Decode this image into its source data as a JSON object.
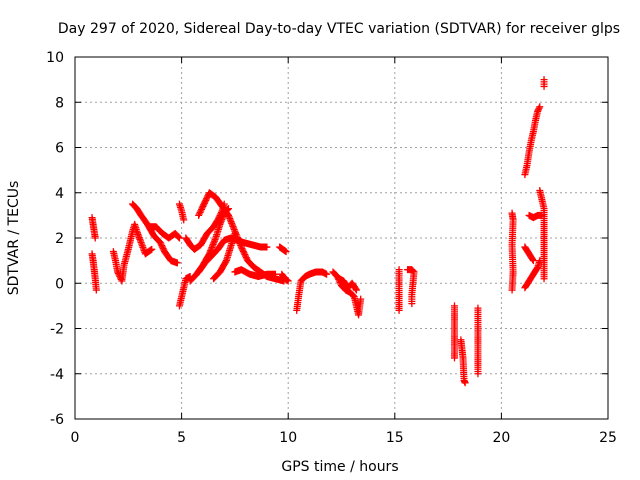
{
  "colors": {
    "series": "#ff0000",
    "grid": "#a0a0a0",
    "axis": "#000000",
    "background": "#ffffff"
  },
  "chart_data": {
    "type": "scatter",
    "title": "Day 297 of 2020, Sidereal Day-to-day VTEC variation (SDTVAR) for receiver glps",
    "xlabel": "GPS time / hours",
    "ylabel": "SDTVAR / TECUs",
    "xlim": [
      0,
      25
    ],
    "ylim": [
      -6,
      10
    ],
    "grid": true,
    "marker": "plus",
    "xticks": [
      0,
      5,
      10,
      15,
      20,
      25
    ],
    "yticks": [
      -6,
      -4,
      -2,
      0,
      2,
      4,
      6,
      8,
      10
    ],
    "series": [
      {
        "name": "SDTVAR",
        "tracks": [
          [
            [
              0.8,
              2.9
            ],
            [
              0.85,
              2.6
            ],
            [
              0.9,
              2.3
            ],
            [
              0.95,
              2.0
            ]
          ],
          [
            [
              0.8,
              1.3
            ],
            [
              0.85,
              1.0
            ],
            [
              0.9,
              0.6
            ],
            [
              0.95,
              0.2
            ],
            [
              1.0,
              -0.3
            ]
          ],
          [
            [
              1.8,
              1.4
            ],
            [
              1.9,
              1.0
            ],
            [
              2.0,
              0.5
            ],
            [
              2.1,
              0.3
            ],
            [
              2.2,
              0.1
            ],
            [
              2.3,
              0.8
            ],
            [
              2.5,
              1.5
            ],
            [
              2.7,
              2.3
            ],
            [
              2.8,
              2.6
            ],
            [
              2.9,
              2.3
            ],
            [
              3.1,
              1.8
            ],
            [
              3.3,
              1.3
            ],
            [
              3.6,
              1.5
            ]
          ],
          [
            [
              2.7,
              3.5
            ],
            [
              2.9,
              3.3
            ],
            [
              3.1,
              3.0
            ],
            [
              3.4,
              2.6
            ],
            [
              3.7,
              2.1
            ],
            [
              4.0,
              1.8
            ],
            [
              4.2,
              1.4
            ],
            [
              4.5,
              1.0
            ],
            [
              4.8,
              0.9
            ]
          ],
          [
            [
              3.5,
              2.5
            ],
            [
              3.8,
              2.5
            ],
            [
              4.1,
              2.2
            ],
            [
              4.4,
              2.0
            ],
            [
              4.7,
              2.2
            ],
            [
              4.9,
              2.0
            ]
          ],
          [
            [
              4.9,
              3.5
            ],
            [
              5.0,
              3.2
            ],
            [
              5.1,
              2.8
            ]
          ],
          [
            [
              4.9,
              -1.0
            ],
            [
              5.0,
              -0.6
            ],
            [
              5.1,
              -0.2
            ],
            [
              5.2,
              0.2
            ],
            [
              5.4,
              0.3
            ]
          ],
          [
            [
              5.2,
              2.0
            ],
            [
              5.4,
              1.7
            ],
            [
              5.6,
              1.5
            ],
            [
              5.9,
              1.7
            ],
            [
              6.2,
              2.2
            ],
            [
              6.5,
              2.5
            ],
            [
              6.7,
              2.8
            ],
            [
              6.9,
              3.2
            ],
            [
              7.0,
              3.5
            ]
          ],
          [
            [
              5.4,
              0.1
            ],
            [
              5.7,
              0.4
            ],
            [
              6.0,
              0.8
            ],
            [
              6.3,
              1.3
            ],
            [
              6.6,
              2.0
            ],
            [
              6.8,
              2.6
            ],
            [
              7.0,
              3.1
            ],
            [
              7.2,
              3.3
            ]
          ],
          [
            [
              5.8,
              3.0
            ],
            [
              6.1,
              3.6
            ],
            [
              6.3,
              4.0
            ],
            [
              6.6,
              3.8
            ],
            [
              6.9,
              3.4
            ],
            [
              7.2,
              3.0
            ],
            [
              7.5,
              2.3
            ],
            [
              7.8,
              1.6
            ],
            [
              8.1,
              1.0
            ],
            [
              8.4,
              0.7
            ],
            [
              8.7,
              0.5
            ],
            [
              9.0,
              0.3
            ],
            [
              9.4,
              0.2
            ],
            [
              9.8,
              0.1
            ]
          ],
          [
            [
              5.8,
              0.5
            ],
            [
              6.1,
              0.9
            ],
            [
              6.4,
              1.2
            ],
            [
              6.7,
              1.5
            ],
            [
              7.0,
              1.9
            ],
            [
              7.3,
              2.0
            ],
            [
              7.6,
              1.9
            ],
            [
              7.9,
              1.8
            ],
            [
              8.3,
              1.7
            ],
            [
              8.7,
              1.6
            ],
            [
              9.0,
              1.6
            ]
          ],
          [
            [
              6.5,
              0.2
            ],
            [
              6.8,
              0.5
            ],
            [
              7.1,
              1.0
            ],
            [
              7.3,
              1.6
            ],
            [
              7.5,
              2.2
            ]
          ],
          [
            [
              7.5,
              0.5
            ],
            [
              7.8,
              0.6
            ],
            [
              8.2,
              0.4
            ],
            [
              8.6,
              0.3
            ],
            [
              9.0,
              0.4
            ],
            [
              9.4,
              0.4
            ]
          ],
          [
            [
              9.6,
              1.6
            ],
            [
              9.75,
              1.5
            ],
            [
              9.9,
              1.4
            ]
          ],
          [
            [
              9.7,
              0.4
            ],
            [
              9.85,
              0.2
            ],
            [
              10.0,
              0.1
            ]
          ],
          [
            [
              10.4,
              -1.2
            ],
            [
              10.5,
              -0.5
            ],
            [
              10.6,
              0.1
            ],
            [
              10.8,
              0.3
            ],
            [
              11.0,
              0.4
            ],
            [
              11.3,
              0.5
            ],
            [
              11.6,
              0.5
            ],
            [
              11.8,
              0.4
            ]
          ],
          [
            [
              12.1,
              0.5
            ],
            [
              12.3,
              0.3
            ],
            [
              12.5,
              -0.1
            ],
            [
              12.7,
              -0.3
            ],
            [
              12.9,
              -0.4
            ],
            [
              13.1,
              -0.6
            ],
            [
              13.3,
              -1.4
            ],
            [
              13.4,
              -0.7
            ]
          ],
          [
            [
              12.4,
              0.2
            ],
            [
              12.6,
              0.1
            ],
            [
              12.8,
              -0.2
            ],
            [
              13.0,
              0.0
            ],
            [
              13.2,
              -0.3
            ]
          ],
          [
            [
              15.2,
              0.6
            ],
            [
              15.2,
              -0.5
            ],
            [
              15.2,
              -1.2
            ]
          ],
          [
            [
              15.6,
              0.6
            ],
            [
              15.8,
              0.6
            ],
            [
              15.9,
              0.5
            ],
            [
              15.8,
              -0.5
            ],
            [
              15.8,
              -0.9
            ]
          ],
          [
            [
              17.8,
              -1.0
            ],
            [
              17.8,
              -2.6
            ],
            [
              17.8,
              -3.3
            ]
          ],
          [
            [
              18.1,
              -2.5
            ],
            [
              18.15,
              -2.9
            ],
            [
              18.2,
              -3.3
            ],
            [
              18.25,
              -4.3
            ],
            [
              18.3,
              -4.4
            ]
          ],
          [
            [
              18.9,
              -1.1
            ],
            [
              18.9,
              -2.2
            ],
            [
              18.9,
              -3.8
            ],
            [
              18.9,
              -4.0
            ]
          ],
          [
            [
              20.5,
              3.1
            ],
            [
              20.55,
              2.8
            ],
            [
              20.5,
              1.7
            ],
            [
              20.55,
              0.5
            ],
            [
              20.5,
              -0.3
            ]
          ],
          [
            [
              21.1,
              4.8
            ],
            [
              21.2,
              5.2
            ],
            [
              21.3,
              5.8
            ],
            [
              21.4,
              6.3
            ],
            [
              21.5,
              6.7
            ],
            [
              21.6,
              7.2
            ],
            [
              21.7,
              7.6
            ],
            [
              21.8,
              7.8
            ]
          ],
          [
            [
              21.3,
              3.0
            ],
            [
              21.5,
              2.9
            ],
            [
              21.7,
              3.0
            ],
            [
              21.9,
              3.0
            ]
          ],
          [
            [
              21.1,
              1.6
            ],
            [
              21.3,
              1.3
            ],
            [
              21.5,
              1.0
            ]
          ],
          [
            [
              21.1,
              -0.2
            ],
            [
              21.3,
              0.1
            ],
            [
              21.5,
              0.4
            ],
            [
              21.7,
              0.7
            ],
            [
              21.8,
              1.0
            ]
          ],
          [
            [
              21.8,
              4.1
            ],
            [
              22.0,
              3.3
            ],
            [
              22.0,
              2.5
            ],
            [
              22.0,
              0.2
            ]
          ],
          [
            [
              22.0,
              9.0
            ],
            [
              22.0,
              8.7
            ]
          ]
        ]
      }
    ]
  }
}
